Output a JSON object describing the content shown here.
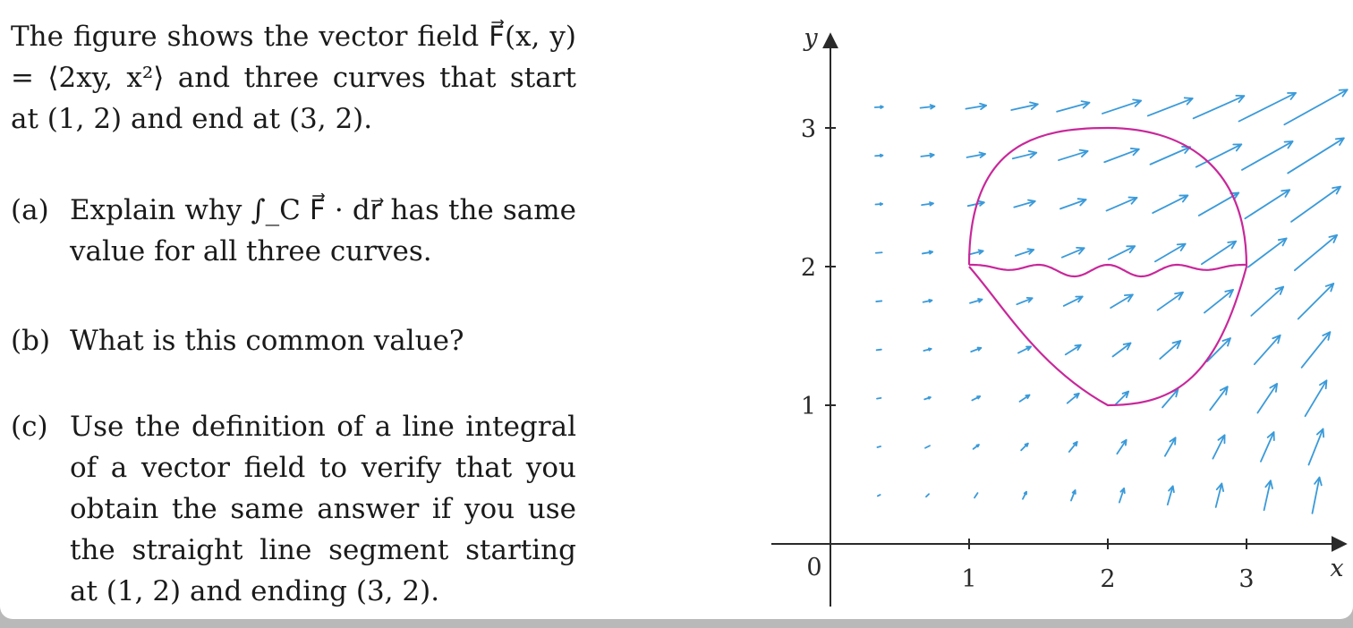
{
  "problem": {
    "intro": "The figure shows the vector field F⃗(x, y) = ⟨2xy, x²⟩ and three curves that start at (1, 2) and end at (3, 2).",
    "parts": [
      {
        "label": "(a)",
        "text": "Explain why ∫_C F⃗ · dr⃗ has the same value for all three curves."
      },
      {
        "label": "(b)",
        "text": "What is this common value?"
      },
      {
        "label": "(c)",
        "text": "Use the definition of a line integral of a vector field to verify that you obtain the same answer if you use the straight line segment starting at (1, 2) and ending (3, 2)."
      }
    ]
  },
  "figure": {
    "x_axis_label": "x",
    "y_axis_label": "y",
    "origin_label": "0",
    "x_ticks": [
      "1",
      "2",
      "3"
    ],
    "y_ticks": [
      "1",
      "2",
      "3"
    ],
    "arrow_color": "#3a9ad9",
    "curve_color": "#c8289a"
  },
  "chart_data": {
    "type": "vector-field",
    "field": "F(x, y) = <2xy, x^2>",
    "xlim": [
      0,
      3.6
    ],
    "ylim": [
      0,
      3.3
    ],
    "grid": false,
    "arrow_grid": {
      "x_start": 0.35,
      "x_step": 0.35,
      "x_count": 10,
      "y_start": 0.35,
      "y_step": 0.35,
      "y_count": 9
    },
    "start_point": [
      1,
      2
    ],
    "end_point": [
      3,
      2
    ],
    "curves": [
      "upper arc",
      "wavy path",
      "lower arc"
    ]
  }
}
